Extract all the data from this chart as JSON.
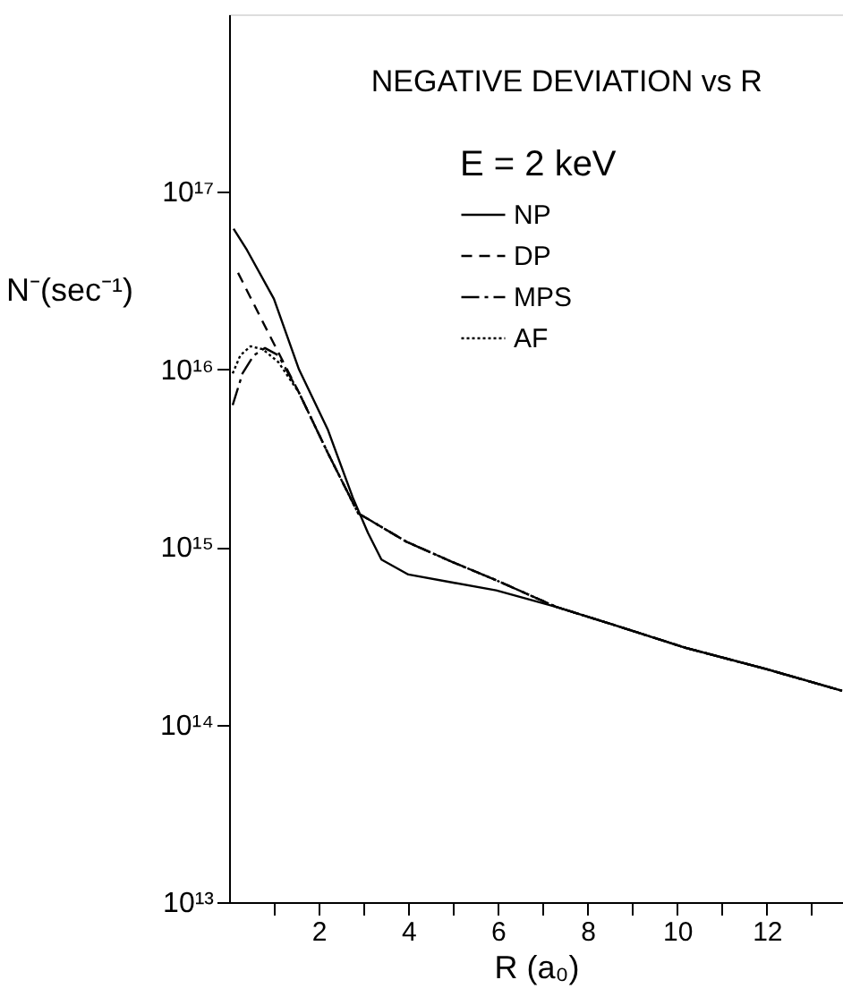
{
  "chart_data": {
    "type": "line",
    "title": "NEGATIVE DEVIATION vs R",
    "xlabel": "R (a₀)",
    "ylabel": "N⁻(sec⁻¹)",
    "legend_title": "E = 2 keV",
    "log": "y",
    "grid": false,
    "legend": "top right",
    "xlim": [
      0,
      13.7
    ],
    "xticks": [
      {
        "value": 1,
        "label": null
      },
      2,
      {
        "value": 3,
        "label": null
      },
      4,
      {
        "value": 5,
        "label": null
      },
      6,
      {
        "value": 7,
        "label": null
      },
      8,
      {
        "value": 9,
        "label": null
      },
      10,
      {
        "value": 11,
        "label": null
      },
      12,
      {
        "value": 13,
        "label": null
      }
    ],
    "ylim": [
      10000000000000.0,
      1e+18
    ],
    "yticks": [
      {
        "value": 10000000000000.0,
        "label": "10¹³"
      },
      {
        "value": 100000000000000.0,
        "label": "10¹⁴"
      },
      {
        "value": 1000000000000000.0,
        "label": "10¹⁵"
      },
      {
        "value": 1e+16,
        "label": "10¹⁶"
      },
      {
        "value": 1e+17,
        "label": "10¹⁷"
      }
    ],
    "series": [
      {
        "name": "NP",
        "color": "#000000",
        "line_style": "solid",
        "x": [
          0.1,
          0.4,
          1.0,
          1.56,
          2.2,
          2.76,
          3.1,
          3.4,
          4.0,
          5.0,
          5.96,
          7.3,
          8.5,
          10.2,
          12.0,
          13.68
        ],
        "values": [
          6.2e+16,
          4.7e+16,
          2.5e+16,
          1e+16,
          4600000000000000.0,
          1900000000000000.0,
          1200000000000000.0,
          850000000000000.0,
          700000000000000.0,
          630000000000000.0,
          570000000000000.0,
          460000000000000.0,
          370000000000000.0,
          270000000000000.0,
          205000000000000.0,
          155000000000000.0
        ]
      },
      {
        "name": "DP",
        "color": "#000000",
        "line_style": "dashed",
        "x": [
          0.2,
          0.88,
          1.56,
          2.2,
          2.88,
          3.96,
          5.0,
          5.96,
          7.3,
          8.5,
          10.2,
          12.0,
          13.68
        ],
        "values": [
          3.5e+16,
          1.6e+16,
          7400000000000000.0,
          3400000000000000.0,
          1550000000000000.0,
          1070000000000000.0,
          820000000000000.0,
          650000000000000.0,
          460000000000000.0,
          370000000000000.0,
          270000000000000.0,
          205000000000000.0,
          155000000000000.0
        ]
      },
      {
        "name": "MPS",
        "color": "#000000",
        "line_style": "dashdot",
        "x": [
          0.08,
          0.3,
          0.55,
          0.8,
          1.1,
          1.56,
          2.2,
          2.88,
          3.96,
          5.0,
          5.96,
          7.3,
          8.5,
          10.2,
          12.0,
          13.68
        ],
        "values": [
          6300000000000000.0,
          9500000000000000.0,
          1.2e+16,
          1.32e+16,
          1.2e+16,
          7400000000000000.0,
          3400000000000000.0,
          1550000000000000.0,
          1070000000000000.0,
          820000000000000.0,
          650000000000000.0,
          460000000000000.0,
          370000000000000.0,
          270000000000000.0,
          205000000000000.0,
          155000000000000.0
        ]
      },
      {
        "name": "AF",
        "color": "#000000",
        "line_style": "dotted",
        "x": [
          0.08,
          0.25,
          0.48,
          0.75,
          1.1,
          1.56,
          2.2,
          2.88,
          3.96,
          5.0,
          5.96,
          7.3,
          8.5,
          10.2,
          12.0,
          13.68
        ],
        "values": [
          9500000000000000.0,
          1.2e+16,
          1.35e+16,
          1.3e+16,
          1.1e+16,
          7400000000000000.0,
          3400000000000000.0,
          1550000000000000.0,
          1070000000000000.0,
          820000000000000.0,
          650000000000000.0,
          460000000000000.0,
          370000000000000.0,
          270000000000000.0,
          205000000000000.0,
          155000000000000.0
        ]
      }
    ]
  }
}
